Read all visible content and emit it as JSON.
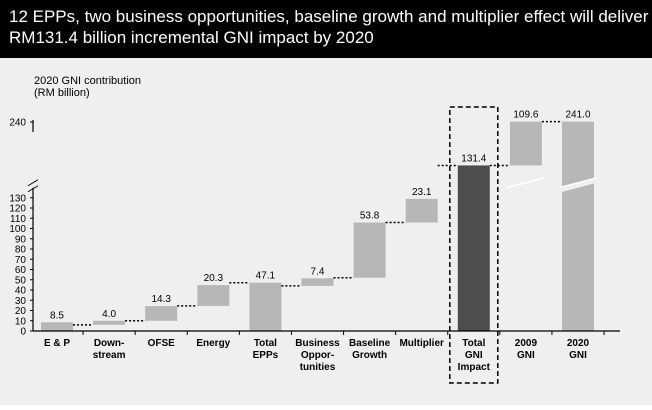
{
  "header": {
    "title_line1": "12 EPPs, two business opportunities, baseline growth and multiplier effect will deliver",
    "title_line2": "RM131.4 billion incremental GNI impact by 2020"
  },
  "colors": {
    "header_bg": "#000000",
    "header_text": "#ffffff",
    "chart_bg": "#efefef",
    "bar_light": "#b7b7b7",
    "bar_dark": "#4d4d4d"
  },
  "chart_data": {
    "type": "bar",
    "subtype": "waterfall",
    "ylabel_line1": "2020 GNI contribution",
    "ylabel_line2": "(RM billion)",
    "y_ticks": [
      "0",
      "10",
      "20",
      "30",
      "40",
      "50",
      "60",
      "70",
      "80",
      "90",
      "100",
      "110",
      "120",
      "130",
      "240"
    ],
    "axis_break": "between 130 and 240",
    "grid": false,
    "categories": [
      {
        "label": [
          "E & P"
        ],
        "value_label": "8.5",
        "base": 0,
        "value": 8.5,
        "style": "light"
      },
      {
        "label": [
          "Down-",
          "stream"
        ],
        "value_label": "4.0",
        "base": 6,
        "value": 4.0,
        "style": "light"
      },
      {
        "label": [
          "OFSE"
        ],
        "value_label": "14.3",
        "base": 10,
        "value": 14.3,
        "style": "light"
      },
      {
        "label": [
          "Energy"
        ],
        "value_label": "20.3",
        "base": 24.5,
        "value": 20.3,
        "style": "light"
      },
      {
        "label": [
          "Total",
          "EPPs"
        ],
        "value_label": "47.1",
        "base": 0,
        "value": 47.1,
        "style": "light"
      },
      {
        "label": [
          "Business",
          "Oppor-",
          "tunities"
        ],
        "value_label": "7.4",
        "base": 44,
        "value": 7.4,
        "style": "light"
      },
      {
        "label": [
          "Baseline",
          "Growth"
        ],
        "value_label": "53.8",
        "base": 52,
        "value": 53.8,
        "style": "light"
      },
      {
        "label": [
          "Multiplier"
        ],
        "value_label": "23.1",
        "base": 105.8,
        "value": 23.1,
        "style": "light"
      },
      {
        "label": [
          "Total",
          "GNI",
          "Impact"
        ],
        "value_label": "131.4",
        "base": 0,
        "value": 131.4,
        "style": "dark",
        "highlighted": true
      },
      {
        "label": [
          "2009",
          "GNI"
        ],
        "value_label": "109.6",
        "base": 131.4,
        "value": 109.6,
        "style": "light",
        "broken": true
      },
      {
        "label": [
          "2020",
          "GNI"
        ],
        "value_label": "241.0",
        "base": 0,
        "value": 241.0,
        "style": "light",
        "broken": true
      }
    ]
  }
}
